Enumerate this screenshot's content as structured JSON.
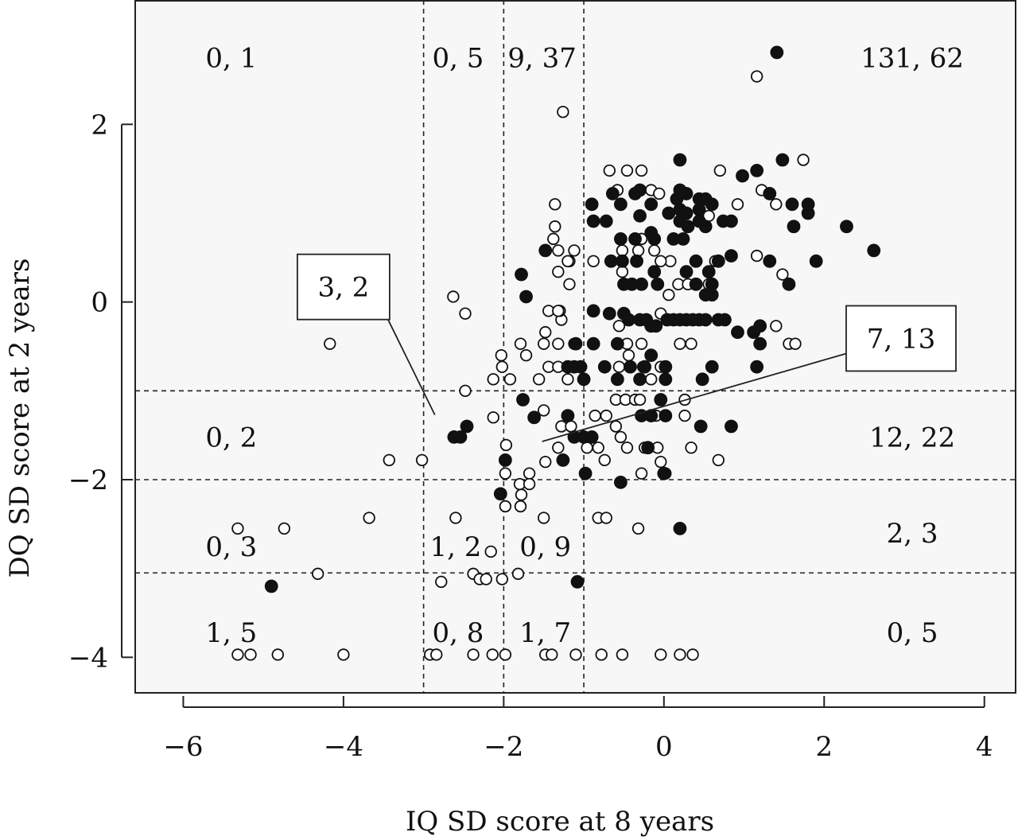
{
  "chart_data": {
    "type": "scatter",
    "xlabel": "IQ SD score at 8 years",
    "ylabel": "DQ SD score at 2 years",
    "xlim": [
      -6.6,
      4.4
    ],
    "ylim": [
      -4.4,
      3.4
    ],
    "x_ticks": [
      -6,
      -4,
      -2,
      0,
      2,
      4
    ],
    "x_tick_labels": [
      "−6",
      "−4",
      "−2",
      "0",
      "2",
      "4"
    ],
    "y_ticks": [
      -4,
      -2,
      0,
      2
    ],
    "y_tick_labels": [
      "−4",
      "−2",
      "0",
      "2"
    ],
    "grid": false,
    "background": "#f7f7f7",
    "reference_lines": {
      "x": [
        -3,
        -2,
        -1
      ],
      "y": [
        -1,
        -2,
        -3.05
      ],
      "style": "dashed"
    },
    "region_counts": [
      {
        "text": "0, 1",
        "x": -5.4,
        "y": 2.75
      },
      {
        "text": "0, 5",
        "x": -2.57,
        "y": 2.75
      },
      {
        "text": "9, 37",
        "x": -1.52,
        "y": 2.75
      },
      {
        "text": "131, 62",
        "x": 3.1,
        "y": 2.75
      },
      {
        "text": "0, 2",
        "x": -5.4,
        "y": -1.52
      },
      {
        "text": "12, 22",
        "x": 3.1,
        "y": -1.52
      },
      {
        "text": "0, 3",
        "x": -5.4,
        "y": -2.75
      },
      {
        "text": "1, 2",
        "x": -2.6,
        "y": -2.75
      },
      {
        "text": "0, 9",
        "x": -1.48,
        "y": -2.75
      },
      {
        "text": "2, 3",
        "x": 3.1,
        "y": -2.6
      },
      {
        "text": "1, 5",
        "x": -5.4,
        "y": -3.72
      },
      {
        "text": "0, 8",
        "x": -2.57,
        "y": -3.72
      },
      {
        "text": "1, 7",
        "x": -1.48,
        "y": -3.72
      },
      {
        "text": "0, 5",
        "x": 3.1,
        "y": -3.72
      }
    ],
    "callouts": [
      {
        "text": "3, 2",
        "box_center": [
          -4.0,
          0.17
        ],
        "pointer_end": [
          -2.86,
          -1.27
        ]
      },
      {
        "text": "7, 13",
        "box_center": [
          2.96,
          -0.41
        ],
        "pointer_end": [
          -1.52,
          -1.57
        ]
      }
    ],
    "series": [
      {
        "name": "",
        "marker": "open-circle",
        "points": [
          [
            -4.17,
            -0.47
          ],
          [
            -2.63,
            0.06
          ],
          [
            -2.48,
            -0.13
          ],
          [
            -1.26,
            2.14
          ],
          [
            1.16,
            2.54
          ],
          [
            1.74,
            1.6
          ],
          [
            -3.43,
            -1.78
          ],
          [
            -3.02,
            -1.78
          ],
          [
            -2.13,
            -1.3
          ],
          [
            -2.48,
            -1.0
          ],
          [
            -2.13,
            -0.87
          ],
          [
            -2.02,
            -0.73
          ],
          [
            -1.92,
            -0.87
          ],
          [
            -2.03,
            -0.6
          ],
          [
            -1.79,
            -0.47
          ],
          [
            -1.72,
            -0.6
          ],
          [
            -1.5,
            -0.47
          ],
          [
            -1.48,
            -0.34
          ],
          [
            -1.32,
            -0.47
          ],
          [
            -1.12,
            -0.47
          ],
          [
            -1.28,
            -0.2
          ],
          [
            -1.44,
            -0.1
          ],
          [
            -1.3,
            -0.1
          ],
          [
            -1.56,
            -0.87
          ],
          [
            -1.44,
            -0.73
          ],
          [
            -1.32,
            -0.73
          ],
          [
            -1.2,
            -0.87
          ],
          [
            -1.0,
            -0.87
          ],
          [
            -1.5,
            -1.22
          ],
          [
            -1.28,
            -1.4
          ],
          [
            -1.16,
            -1.4
          ],
          [
            -1.32,
            -1.64
          ],
          [
            -1.48,
            -1.8
          ],
          [
            -1.68,
            -1.93
          ],
          [
            -1.8,
            -2.05
          ],
          [
            -1.68,
            -2.05
          ],
          [
            -1.78,
            -2.17
          ],
          [
            -1.79,
            -2.3
          ],
          [
            -1.98,
            -2.3
          ],
          [
            -1.98,
            -1.93
          ],
          [
            -1.97,
            -1.61
          ],
          [
            -1.32,
            -0.1
          ],
          [
            -1.18,
            0.2
          ],
          [
            -1.32,
            0.34
          ],
          [
            -1.18,
            0.46
          ],
          [
            -1.32,
            0.58
          ],
          [
            -1.38,
            0.71
          ],
          [
            -1.36,
            0.85
          ],
          [
            -1.36,
            1.1
          ],
          [
            -1.2,
            0.46
          ],
          [
            -1.12,
            0.58
          ],
          [
            -0.88,
            0.46
          ],
          [
            -0.68,
            1.48
          ],
          [
            -0.58,
            1.26
          ],
          [
            -0.46,
            1.48
          ],
          [
            -0.28,
            1.48
          ],
          [
            -0.16,
            1.26
          ],
          [
            -0.06,
            1.22
          ],
          [
            0.7,
            1.48
          ],
          [
            0.92,
            1.1
          ],
          [
            0.56,
            0.97
          ],
          [
            1.22,
            1.26
          ],
          [
            1.32,
            1.22
          ],
          [
            1.4,
            1.1
          ],
          [
            0.64,
            0.46
          ],
          [
            1.16,
            0.52
          ],
          [
            1.48,
            0.31
          ],
          [
            1.56,
            -0.47
          ],
          [
            1.64,
            -0.47
          ],
          [
            1.4,
            -0.27
          ],
          [
            -0.52,
            0.58
          ],
          [
            -0.52,
            0.34
          ],
          [
            -0.32,
            0.58
          ],
          [
            -0.28,
            0.71
          ],
          [
            -0.12,
            0.58
          ],
          [
            0.08,
            0.46
          ],
          [
            -0.04,
            0.46
          ],
          [
            0.06,
            0.08
          ],
          [
            0.18,
            0.2
          ],
          [
            0.3,
            0.2
          ],
          [
            0.56,
            0.2
          ],
          [
            0.34,
            -0.47
          ],
          [
            0.2,
            -0.47
          ],
          [
            -0.04,
            -0.13
          ],
          [
            0.06,
            -0.2
          ],
          [
            -0.56,
            -0.27
          ],
          [
            -0.46,
            -0.47
          ],
          [
            -0.44,
            -0.6
          ],
          [
            -0.56,
            -0.73
          ],
          [
            -0.28,
            -0.47
          ],
          [
            -0.16,
            -0.87
          ],
          [
            -0.04,
            -0.73
          ],
          [
            -0.26,
            -0.73
          ],
          [
            -0.6,
            -1.1
          ],
          [
            -0.48,
            -1.1
          ],
          [
            -0.36,
            -1.1
          ],
          [
            -0.3,
            -1.1
          ],
          [
            0.26,
            -1.1
          ],
          [
            0.26,
            -1.28
          ],
          [
            -0.1,
            -1.28
          ],
          [
            -0.72,
            -1.28
          ],
          [
            -0.86,
            -1.28
          ],
          [
            -0.6,
            -1.4
          ],
          [
            -0.54,
            -1.52
          ],
          [
            -0.96,
            -1.64
          ],
          [
            -0.82,
            -1.64
          ],
          [
            -0.46,
            -1.64
          ],
          [
            -0.24,
            -1.64
          ],
          [
            -0.08,
            -1.64
          ],
          [
            -0.74,
            -1.78
          ],
          [
            -0.28,
            -1.93
          ],
          [
            -0.04,
            -1.8
          ],
          [
            0.02,
            -1.93
          ],
          [
            0.34,
            -1.64
          ],
          [
            0.68,
            -1.78
          ],
          [
            -0.82,
            -2.43
          ],
          [
            -0.72,
            -2.43
          ],
          [
            -0.32,
            -2.55
          ],
          [
            -2.6,
            -2.43
          ],
          [
            -1.5,
            -2.43
          ],
          [
            -2.16,
            -2.81
          ],
          [
            -2.38,
            -3.06
          ],
          [
            -2.3,
            -3.12
          ],
          [
            -2.22,
            -3.12
          ],
          [
            -2.02,
            -3.12
          ],
          [
            -2.78,
            -3.15
          ],
          [
            -1.82,
            -3.06
          ],
          [
            -4.74,
            -2.55
          ],
          [
            -5.32,
            -2.55
          ],
          [
            -3.68,
            -2.43
          ],
          [
            -4.32,
            -3.06
          ],
          [
            -5.32,
            -3.97
          ],
          [
            -5.16,
            -3.97
          ],
          [
            -4.82,
            -3.97
          ],
          [
            -4.0,
            -3.97
          ],
          [
            -2.92,
            -3.97
          ],
          [
            -2.84,
            -3.97
          ],
          [
            -2.38,
            -3.97
          ],
          [
            -2.14,
            -3.97
          ],
          [
            -1.98,
            -3.97
          ],
          [
            -1.48,
            -3.97
          ],
          [
            -1.4,
            -3.97
          ],
          [
            -1.1,
            -3.97
          ],
          [
            -0.78,
            -3.97
          ],
          [
            -0.52,
            -3.97
          ],
          [
            -0.04,
            -3.97
          ],
          [
            0.2,
            -3.97
          ],
          [
            0.36,
            -3.97
          ]
        ]
      },
      {
        "name": "",
        "marker": "filled-circle",
        "points": [
          [
            1.41,
            2.81
          ],
          [
            0.2,
            1.6
          ],
          [
            1.16,
            1.48
          ],
          [
            0.98,
            1.42
          ],
          [
            1.48,
            1.6
          ],
          [
            -0.72,
            0.91
          ],
          [
            -0.9,
            1.1
          ],
          [
            -0.88,
            0.91
          ],
          [
            -0.54,
            1.1
          ],
          [
            -0.64,
            1.22
          ],
          [
            -0.36,
            1.22
          ],
          [
            -0.3,
            1.26
          ],
          [
            -0.16,
            1.1
          ],
          [
            -0.3,
            0.97
          ],
          [
            -0.16,
            0.78
          ],
          [
            0.06,
            1.0
          ],
          [
            0.16,
            1.16
          ],
          [
            0.2,
            1.26
          ],
          [
            0.28,
            1.22
          ],
          [
            0.2,
            1.04
          ],
          [
            0.28,
            1.0
          ],
          [
            0.2,
            0.91
          ],
          [
            0.3,
            0.85
          ],
          [
            0.44,
            1.16
          ],
          [
            0.52,
            1.16
          ],
          [
            0.44,
            1.04
          ],
          [
            0.6,
            1.1
          ],
          [
            0.44,
            0.91
          ],
          [
            0.52,
            0.85
          ],
          [
            0.74,
            0.91
          ],
          [
            0.84,
            0.91
          ],
          [
            1.32,
            1.22
          ],
          [
            1.6,
            1.1
          ],
          [
            1.8,
            1.1
          ],
          [
            1.8,
            1.0
          ],
          [
            1.62,
            0.85
          ],
          [
            2.28,
            0.85
          ],
          [
            2.62,
            0.58
          ],
          [
            1.9,
            0.46
          ],
          [
            1.32,
            0.46
          ],
          [
            1.56,
            0.2
          ],
          [
            0.84,
            0.52
          ],
          [
            0.68,
            0.46
          ],
          [
            0.56,
            0.34
          ],
          [
            0.4,
            0.46
          ],
          [
            0.28,
            0.34
          ],
          [
            0.4,
            0.2
          ],
          [
            0.6,
            0.2
          ],
          [
            0.6,
            0.08
          ],
          [
            0.52,
            0.08
          ],
          [
            0.24,
            0.71
          ],
          [
            0.12,
            0.71
          ],
          [
            -0.12,
            0.71
          ],
          [
            -0.36,
            0.71
          ],
          [
            -0.54,
            0.71
          ],
          [
            -0.34,
            0.46
          ],
          [
            -0.52,
            0.46
          ],
          [
            -0.66,
            0.46
          ],
          [
            -0.5,
            0.2
          ],
          [
            -0.4,
            0.2
          ],
          [
            -0.28,
            0.2
          ],
          [
            -0.12,
            0.34
          ],
          [
            -0.08,
            0.2
          ],
          [
            -0.68,
            -0.13
          ],
          [
            -0.5,
            -0.13
          ],
          [
            -0.44,
            -0.2
          ],
          [
            -0.3,
            -0.2
          ],
          [
            -0.22,
            -0.2
          ],
          [
            -0.16,
            -0.27
          ],
          [
            -0.1,
            -0.27
          ],
          [
            0.04,
            -0.2
          ],
          [
            0.12,
            -0.2
          ],
          [
            0.2,
            -0.2
          ],
          [
            0.28,
            -0.2
          ],
          [
            0.36,
            -0.2
          ],
          [
            0.44,
            -0.2
          ],
          [
            0.52,
            -0.2
          ],
          [
            0.68,
            -0.2
          ],
          [
            0.76,
            -0.2
          ],
          [
            0.92,
            -0.34
          ],
          [
            1.12,
            -0.34
          ],
          [
            1.2,
            -0.27
          ],
          [
            1.2,
            -0.47
          ],
          [
            1.16,
            -0.73
          ],
          [
            0.48,
            -0.87
          ],
          [
            0.6,
            -0.73
          ],
          [
            -0.88,
            -0.1
          ],
          [
            -0.88,
            -0.47
          ],
          [
            -1.1,
            -0.47
          ],
          [
            -1.12,
            -0.73
          ],
          [
            -1.2,
            -0.73
          ],
          [
            -1.04,
            -0.73
          ],
          [
            -1.0,
            -0.87
          ],
          [
            -1.48,
            0.58
          ],
          [
            -1.78,
            0.31
          ],
          [
            -1.72,
            0.06
          ],
          [
            -1.62,
            -1.3
          ],
          [
            -1.76,
            -1.1
          ],
          [
            -1.12,
            -1.52
          ],
          [
            -1.2,
            -1.28
          ],
          [
            -1.0,
            -1.52
          ],
          [
            -0.9,
            -1.52
          ],
          [
            -1.26,
            -1.78
          ],
          [
            -0.98,
            -1.93
          ],
          [
            -0.54,
            -2.03
          ],
          [
            -0.2,
            -1.64
          ],
          [
            0.0,
            -1.93
          ],
          [
            0.2,
            -2.55
          ],
          [
            -1.98,
            -1.78
          ],
          [
            -2.04,
            -2.16
          ],
          [
            -2.62,
            -1.52
          ],
          [
            -2.54,
            -1.52
          ],
          [
            -2.46,
            -1.4
          ],
          [
            -1.08,
            -3.15
          ],
          [
            -4.9,
            -3.2
          ],
          [
            -0.58,
            -0.47
          ],
          [
            -0.74,
            -0.73
          ],
          [
            -0.58,
            -0.87
          ],
          [
            -0.42,
            -0.73
          ],
          [
            -0.3,
            -0.87
          ],
          [
            -0.24,
            -0.73
          ],
          [
            -0.16,
            -0.6
          ],
          [
            0.02,
            -0.73
          ],
          [
            0.02,
            -0.87
          ],
          [
            -0.04,
            -1.1
          ],
          [
            0.02,
            -1.28
          ],
          [
            -0.16,
            -1.28
          ],
          [
            -0.28,
            -1.28
          ],
          [
            0.46,
            -1.4
          ],
          [
            0.84,
            -1.4
          ]
        ]
      }
    ]
  }
}
